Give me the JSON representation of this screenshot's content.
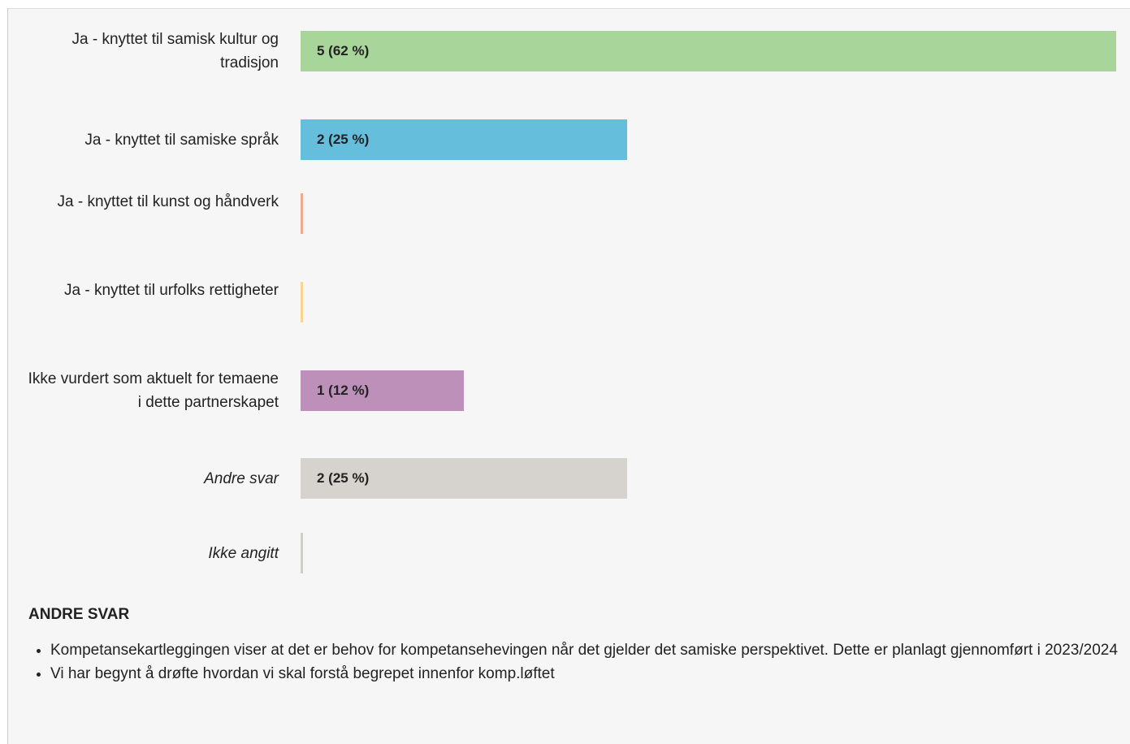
{
  "chart_data": {
    "type": "bar",
    "orientation": "horizontal",
    "categories": [
      "Ja - knyttet til samisk kultur og tradisjon",
      "Ja - knyttet til samiske språk",
      "Ja - knyttet til kunst og håndverk",
      "Ja - knyttet til urfolks rettigheter",
      "Ikke vurdert som aktuelt for temaene i dette partnerskapet",
      "Andre svar",
      "Ikke angitt"
    ],
    "values": [
      5,
      2,
      0,
      0,
      1,
      2,
      0
    ],
    "value_labels": [
      "5 (62 %)",
      "2 (25 %)",
      null,
      null,
      "1 (12 %)",
      "2 (25 %)",
      null
    ],
    "colors": [
      "#a8d59a",
      "#65bedb",
      "#f0a98d",
      "#f8d48e",
      "#bc90b9",
      "#d6d3ce",
      "#cfcdc9"
    ]
  },
  "other_answers": {
    "title": "ANDRE SVAR",
    "items": [
      "Kompetansekartleggingen viser at det er behov for kompetansehevingen når det gjelder det samiske perspektivet. Dette er planlagt gjennomført i 2023/2024",
      "Vi har begynt å drøfte hvordan vi skal forstå begrepet innenfor komp.løftet"
    ]
  }
}
